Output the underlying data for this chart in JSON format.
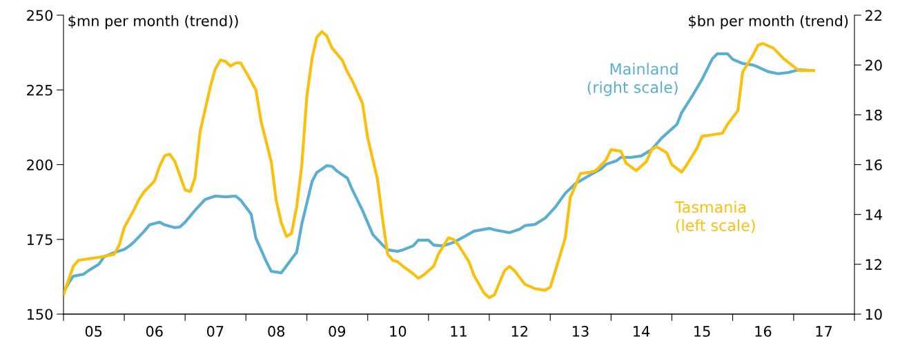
{
  "chart_data": {
    "type": "line",
    "ylabel": "$mn per month (trend))",
    "y2label": "$bn per month (trend)",
    "xlim": [
      "2005",
      "2018"
    ],
    "ylim": [
      150,
      250
    ],
    "yticks": [
      150,
      175,
      200,
      225,
      250
    ],
    "y2lim": [
      10,
      22
    ],
    "y2ticks": [
      10,
      12,
      14,
      16,
      18,
      20,
      22
    ],
    "xticks": [
      {
        "value": "2005",
        "label": null
      },
      {
        "value": "2005-07",
        "label": "05"
      },
      {
        "value": "2006",
        "label": null
      },
      {
        "value": "2006-07",
        "label": "06"
      },
      {
        "value": "2007",
        "label": null
      },
      {
        "value": "2007-07",
        "label": "07"
      },
      {
        "value": "2008",
        "label": null
      },
      {
        "value": "2008-07",
        "label": "08"
      },
      {
        "value": "2009",
        "label": null
      },
      {
        "value": "2009-07",
        "label": "09"
      },
      {
        "value": "2010",
        "label": null
      },
      {
        "value": "2010-07",
        "label": "10"
      },
      {
        "value": "2011",
        "label": null
      },
      {
        "value": "2011-07",
        "label": "11"
      },
      {
        "value": "2012",
        "label": null
      },
      {
        "value": "2012-07",
        "label": "12"
      },
      {
        "value": "2013",
        "label": null
      },
      {
        "value": "2013-07",
        "label": "13"
      },
      {
        "value": "2014",
        "label": null
      },
      {
        "value": "2014-07",
        "label": "14"
      },
      {
        "value": "2015",
        "label": null
      },
      {
        "value": "2015-07",
        "label": "15"
      },
      {
        "value": "2016",
        "label": null
      },
      {
        "value": "2016-07",
        "label": "16"
      },
      {
        "value": "2017",
        "label": null
      },
      {
        "value": "2017-07",
        "label": "17"
      },
      {
        "value": "2018",
        "label": null
      }
    ],
    "grid": false,
    "marker": "none",
    "line_style": "solid",
    "series": [
      {
        "name": "Tasmania\n(left scale)",
        "color": "#fbbf0e",
        "x": [
          "2005-01",
          "2005-02",
          "2005-03",
          "2005-04",
          "2005-06",
          "2005-08",
          "2005-11",
          "2005-12",
          "2006-01",
          "2006-03",
          "2006-04",
          "2006-05",
          "2006-07",
          "2006-08",
          "2006-09",
          "2006-10",
          "2006-11",
          "2007-01",
          "2007-02",
          "2007-03",
          "2007-04",
          "2007-06",
          "2007-07",
          "2007-08",
          "2007-09",
          "2007-10",
          "2007-11",
          "2007-12",
          "2008-01",
          "2008-03",
          "2008-04",
          "2008-06",
          "2008-07",
          "2008-08",
          "2008-09",
          "2008-10",
          "2008-11",
          "2008-12",
          "2009-01",
          "2009-02",
          "2009-03",
          "2009-04",
          "2009-05",
          "2009-06",
          "2009-08",
          "2009-09",
          "2009-10",
          "2009-12",
          "2010-01",
          "2010-03",
          "2010-04",
          "2010-05",
          "2010-06",
          "2010-07",
          "2010-08",
          "2010-10",
          "2010-11",
          "2010-12",
          "2011-02",
          "2011-03",
          "2011-05",
          "2011-06",
          "2011-07",
          "2011-09",
          "2011-10",
          "2011-12",
          "2012-01",
          "2012-02",
          "2012-04",
          "2012-05",
          "2012-06",
          "2012-08",
          "2012-10",
          "2012-12",
          "2013-01",
          "2013-02",
          "2013-04",
          "2013-05",
          "2013-07",
          "2013-09",
          "2013-10",
          "2013-12",
          "2014-01",
          "2014-03",
          "2014-04",
          "2014-06",
          "2014-08",
          "2014-09",
          "2014-10",
          "2014-12",
          "2015-01",
          "2015-03",
          "2015-04",
          "2015-06",
          "2015-07",
          "2015-09",
          "2015-11",
          "2015-12",
          "2016-02",
          "2016-03",
          "2016-05",
          "2016-06",
          "2016-07",
          "2016-09",
          "2016-11",
          "2017-02",
          "2017-05"
        ],
        "values": [
          156.5,
          161.5,
          166,
          168,
          168.5,
          169,
          170,
          173,
          179,
          185,
          188.5,
          191,
          194.5,
          199.5,
          203,
          203.5,
          201,
          191.5,
          191,
          195.5,
          211,
          226,
          232,
          235,
          234.5,
          233,
          234,
          234,
          231,
          225,
          214.5,
          201,
          188,
          180.5,
          176,
          177,
          186,
          199.5,
          223,
          235.5,
          242.5,
          244.5,
          243,
          239,
          235,
          231,
          228,
          220.5,
          209,
          195,
          181.5,
          170,
          168,
          167.5,
          166,
          163.5,
          162,
          163,
          166,
          170,
          175.5,
          175,
          173,
          167.5,
          163,
          157,
          155.5,
          156.5,
          164.5,
          166,
          164.5,
          160,
          158.5,
          158,
          159,
          164.5,
          175.5,
          189,
          197,
          197.5,
          198,
          201.5,
          205,
          204.5,
          200.5,
          198,
          201,
          205,
          206,
          204,
          200,
          197.5,
          200,
          205.5,
          209.5,
          210,
          210.5,
          213.5,
          218,
          231,
          236.5,
          240,
          240.5,
          239,
          235.5,
          231.5,
          231.5
        ]
      },
      {
        "name": "Mainland\n(right scale)",
        "color": "#5aaecf",
        "axis": "y2",
        "x": [
          "2005-01",
          "2005-02",
          "2005-03",
          "2005-05",
          "2005-06",
          "2005-08",
          "2005-09",
          "2005-11",
          "2006-01",
          "2006-02",
          "2006-03",
          "2006-05",
          "2006-06",
          "2006-08",
          "2006-09",
          "2006-11",
          "2006-12",
          "2007-01",
          "2007-03",
          "2007-05",
          "2007-07",
          "2007-09",
          "2007-11",
          "2007-12",
          "2008-02",
          "2008-03",
          "2008-05",
          "2008-06",
          "2008-08",
          "2008-09",
          "2008-11",
          "2008-12",
          "2009-02",
          "2009-03",
          "2009-05",
          "2009-06",
          "2009-07",
          "2009-09",
          "2009-10",
          "2009-12",
          "2010-02",
          "2010-04",
          "2010-05",
          "2010-07",
          "2010-08",
          "2010-10",
          "2010-11",
          "2011-01",
          "2011-02",
          "2011-04",
          "2011-06",
          "2011-08",
          "2011-10",
          "2012-01",
          "2012-02",
          "2012-05",
          "2012-07",
          "2012-08",
          "2012-10",
          "2012-12",
          "2013-02",
          "2013-04",
          "2013-06",
          "2013-09",
          "2013-11",
          "2013-12",
          "2014-02",
          "2014-03",
          "2014-05",
          "2014-07",
          "2014-09",
          "2014-11",
          "2015-02",
          "2015-03",
          "2015-05",
          "2015-07",
          "2015-09",
          "2015-10",
          "2015-12",
          "2016-01",
          "2016-03",
          "2016-05",
          "2016-06",
          "2016-08",
          "2016-10",
          "2016-12",
          "2017-02",
          "2017-05"
        ],
        "values": [
          10.86,
          11.25,
          11.52,
          11.6,
          11.75,
          12.0,
          12.3,
          12.47,
          12.6,
          12.74,
          12.9,
          13.33,
          13.58,
          13.69,
          13.58,
          13.47,
          13.5,
          13.69,
          14.16,
          14.6,
          14.74,
          14.71,
          14.74,
          14.57,
          14.02,
          13.05,
          12.13,
          11.72,
          11.66,
          11.94,
          12.49,
          13.6,
          15.32,
          15.68,
          15.96,
          15.93,
          15.74,
          15.46,
          14.99,
          14.16,
          13.19,
          12.77,
          12.58,
          12.52,
          12.58,
          12.74,
          12.97,
          12.97,
          12.77,
          12.74,
          12.88,
          13.1,
          13.33,
          13.44,
          13.38,
          13.27,
          13.41,
          13.55,
          13.6,
          13.85,
          14.3,
          14.85,
          15.24,
          15.6,
          15.82,
          16.01,
          16.15,
          16.29,
          16.29,
          16.35,
          16.6,
          17.07,
          17.62,
          18.09,
          18.73,
          19.42,
          20.25,
          20.45,
          20.45,
          20.23,
          20.06,
          20.0,
          19.92,
          19.73,
          19.65,
          19.7,
          19.81,
          19.78
        ]
      }
    ]
  }
}
